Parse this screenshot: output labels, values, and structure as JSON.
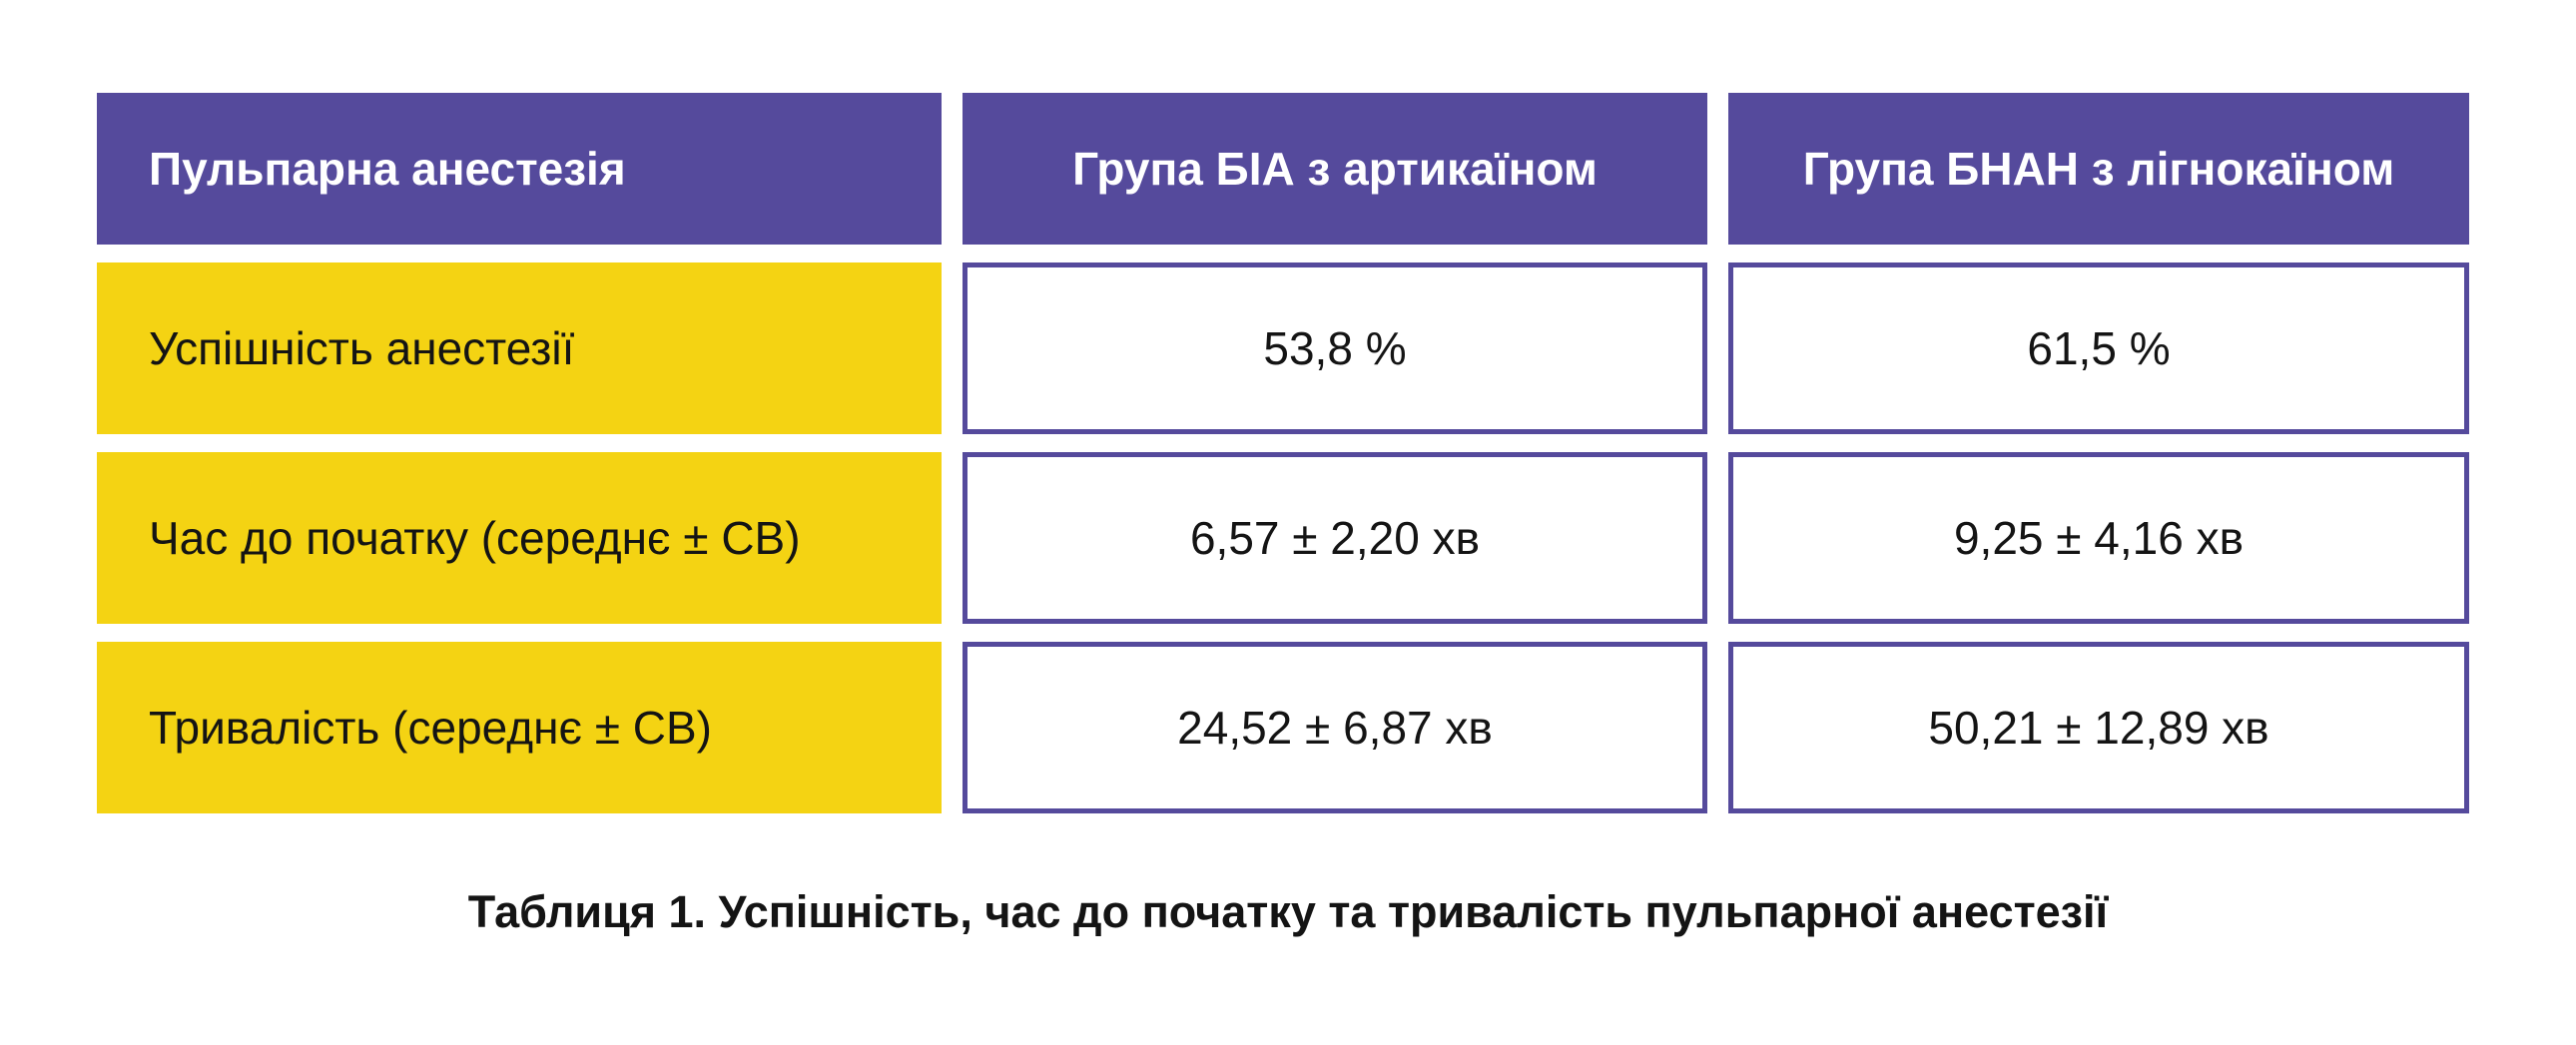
{
  "colors": {
    "header_purple": "#554A9C",
    "cell_border_purple": "#554A9C",
    "label_yellow": "#F4D313",
    "value_background": "#FFFFFF",
    "header_text": "#FFFFFF",
    "body_text": "#141414",
    "page_background": "#FFFFFF"
  },
  "table": {
    "header": [
      "Пульпарна анестезія",
      "Група БІА з артикаїном",
      "Група БНАН з лігнокаїном"
    ],
    "rows": [
      {
        "label": "Успішність анестезії",
        "values": [
          "53,8 %",
          "61,5 %"
        ]
      },
      {
        "label": "Час до початку (середнє ± СВ)",
        "values": [
          "6,57 ± 2,20 хв",
          "9,25 ± 4,16 хв"
        ]
      },
      {
        "label": "Тривалість (середнє ± СВ)",
        "values": [
          "24,52 ± 6,87 хв",
          "50,21 ± 12,89 хв"
        ]
      }
    ]
  },
  "caption": "Таблиця 1. Успішність, час до початку та тривалість пульпарної анестезії",
  "chart_data": {
    "type": "table",
    "title": "Таблиця 1. Успішність, час до початку та тривалість пульпарної анестезії",
    "columns": [
      "Пульпарна анестезія",
      "Група БІА з артикаїном",
      "Група БНАН з лігнокаїном"
    ],
    "rows": [
      [
        "Успішність анестезії",
        "53,8 %",
        "61,5 %"
      ],
      [
        "Час до початку (середнє ± СВ)",
        "6,57 ± 2,20 хв",
        "9,25 ± 4,16 хв"
      ],
      [
        "Тривалість (середнє ± СВ)",
        "24,52 ± 6,87 хв",
        "50,21 ± 12,89 хв"
      ]
    ],
    "numeric": {
      "success_rate_percent": {
        "bia_articaine": 53.8,
        "bnan_lignocaine": 61.5
      },
      "onset_time_min": {
        "bia_articaine": {
          "mean": 6.57,
          "sd": 2.2
        },
        "bnan_lignocaine": {
          "mean": 9.25,
          "sd": 4.16
        }
      },
      "duration_min": {
        "bia_articaine": {
          "mean": 24.52,
          "sd": 6.87
        },
        "bnan_lignocaine": {
          "mean": 50.21,
          "sd": 12.89
        }
      }
    }
  }
}
